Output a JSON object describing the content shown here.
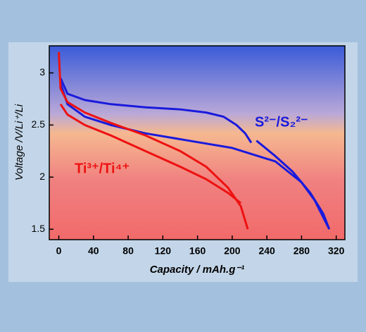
{
  "chart_data": {
    "type": "line",
    "x_label": "Capacity / mAh.g⁻¹",
    "y_label": "Voltage /V/Li⁺/Li",
    "annotations": [
      "Ti³⁺/Ti⁴⁺",
      "S²⁻/S₂²⁻"
    ],
    "xlim": [
      -11,
      330
    ],
    "ylim": [
      1.4,
      3.26
    ],
    "xticks": [
      0,
      40,
      80,
      120,
      160,
      200,
      240,
      280,
      320
    ],
    "yticks": [
      1.5,
      2,
      2.5,
      3
    ],
    "series": [
      {
        "color": "#1a1adc",
        "x": [
          2,
          10,
          30,
          60,
          100,
          140,
          170,
          190,
          205,
          215,
          222
        ],
        "values": [
          2.95,
          2.8,
          2.74,
          2.7,
          2.67,
          2.65,
          2.62,
          2.58,
          2.5,
          2.42,
          2.33
        ]
      },
      {
        "color": "#1a1adc",
        "x": [
          228,
          250,
          270,
          290,
          305,
          312
        ],
        "values": [
          2.35,
          2.2,
          2.05,
          1.85,
          1.65,
          1.5
        ]
      },
      {
        "color": "#1a1adc",
        "x": [
          312,
          295,
          280,
          250,
          200,
          150,
          100,
          60,
          30,
          10,
          2
        ],
        "values": [
          1.5,
          1.78,
          1.95,
          2.15,
          2.28,
          2.35,
          2.42,
          2.5,
          2.58,
          2.7,
          2.9
        ]
      },
      {
        "color": "#ee1111",
        "x": [
          0,
          2,
          10,
          30,
          60,
          100,
          140,
          170,
          195,
          210,
          218
        ],
        "values": [
          3.2,
          2.85,
          2.72,
          2.62,
          2.52,
          2.4,
          2.25,
          2.1,
          1.9,
          1.72,
          1.5
        ]
      },
      {
        "color": "#ee1111",
        "x": [
          2,
          10,
          30,
          60,
          100,
          140,
          170,
          195,
          210
        ],
        "values": [
          2.7,
          2.6,
          2.5,
          2.4,
          2.25,
          2.1,
          1.98,
          1.85,
          1.75
        ]
      }
    ]
  }
}
